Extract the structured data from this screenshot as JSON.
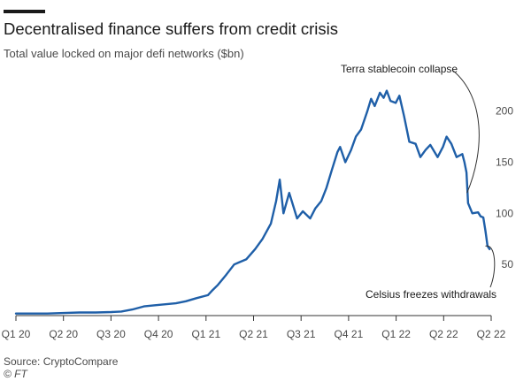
{
  "header": {
    "title": "Decentralised finance suffers from credit crisis",
    "subtitle": "Total value locked on major defi networks ($bn)"
  },
  "footer": {
    "source": "Source: CryptoCompare",
    "credit": "© FT"
  },
  "colors": {
    "line": "#1f5fa8",
    "axis": "#333333",
    "grid": "#e6e6e6",
    "text": "#4a4a4a"
  },
  "chart_data": {
    "type": "line",
    "title": "Decentralised finance suffers from credit crisis",
    "subtitle": "Total value locked on major defi networks ($bn)",
    "xlabel": "",
    "ylabel": "",
    "x_ticks": [
      "Q1 20",
      "Q2 20",
      "Q3 20",
      "Q4 20",
      "Q1 21",
      "Q2 21",
      "Q3 21",
      "Q4 21",
      "Q1 22",
      "Q2 22",
      "Q2 22"
    ],
    "y_ticks": [
      50,
      100,
      150,
      200
    ],
    "ylim": [
      0,
      230
    ],
    "xlim": [
      "2020-01-01",
      "2022-06-25"
    ],
    "grid": false,
    "y_axis_side": "right",
    "series": [
      {
        "x": [
          "2020-01-01",
          "2020-02-01",
          "2020-03-01",
          "2020-04-01",
          "2020-05-01",
          "2020-06-01",
          "2020-07-01",
          "2020-07-20",
          "2020-08-10",
          "2020-09-01",
          "2020-09-20",
          "2020-10-10",
          "2020-11-01",
          "2020-11-20",
          "2020-12-10",
          "2021-01-01",
          "2021-01-10",
          "2021-01-20",
          "2021-02-05",
          "2021-02-20",
          "2021-03-01",
          "2021-03-15",
          "2021-04-01",
          "2021-04-15",
          "2021-05-01",
          "2021-05-11",
          "2021-05-18",
          "2021-05-25",
          "2021-06-05",
          "2021-06-20",
          "2021-07-01",
          "2021-07-15",
          "2021-07-25",
          "2021-08-05",
          "2021-08-15",
          "2021-08-25",
          "2021-09-05",
          "2021-09-10",
          "2021-09-20",
          "2021-10-01",
          "2021-10-10",
          "2021-10-20",
          "2021-11-01",
          "2021-11-08",
          "2021-11-15",
          "2021-11-25",
          "2021-12-02",
          "2021-12-08",
          "2021-12-15",
          "2021-12-25",
          "2022-01-01",
          "2022-01-10",
          "2022-01-20",
          "2022-02-01",
          "2022-02-10",
          "2022-02-20",
          "2022-03-01",
          "2022-03-15",
          "2022-03-25",
          "2022-04-01",
          "2022-04-10",
          "2022-04-20",
          "2022-05-01",
          "2022-05-05",
          "2022-05-09",
          "2022-05-12",
          "2022-05-20",
          "2022-05-31",
          "2022-06-05",
          "2022-06-10",
          "2022-06-14",
          "2022-06-18",
          "2022-06-22"
        ],
        "values": [
          2.0,
          2.0,
          2.0,
          2.5,
          3.0,
          3.0,
          3.5,
          4.0,
          6.0,
          9.0,
          10.0,
          11.0,
          12.0,
          14.0,
          17.0,
          20.0,
          25.0,
          30.0,
          40.0,
          50.0,
          52.0,
          55.0,
          65.0,
          75.0,
          90.0,
          112.0,
          133.0,
          100.0,
          120.0,
          95.0,
          102.0,
          95.0,
          105.0,
          112.0,
          125.0,
          142.0,
          160.0,
          165.0,
          150.0,
          162.0,
          175.0,
          182.0,
          200.0,
          212.0,
          205.0,
          218.0,
          213.0,
          220.0,
          210.0,
          208.0,
          215.0,
          195.0,
          170.0,
          168.0,
          155.0,
          162.0,
          167.0,
          155.0,
          165.0,
          175.0,
          168.0,
          155.0,
          158.0,
          150.0,
          140.0,
          110.0,
          100.0,
          101.0,
          97.0,
          96.0,
          83.0,
          68.0,
          65.0
        ]
      }
    ],
    "annotations": [
      {
        "text": "Terra stablecoin collapse",
        "x": "2022-05-10",
        "y": 120
      },
      {
        "text": "Celsius freezes withdrawals",
        "x": "2022-06-14",
        "y": 68
      }
    ]
  }
}
